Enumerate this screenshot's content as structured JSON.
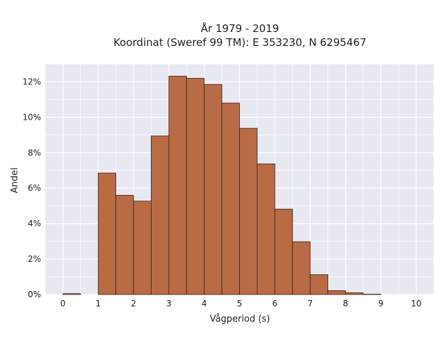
{
  "chart_data": {
    "type": "bar",
    "title_lines": [
      "År 1979 - 2019",
      "Koordinat (Sweref 99 TM): E 353230, N 6295467"
    ],
    "xlabel": "Vågperiod (s)",
    "ylabel": "Andel",
    "xlim": [
      -0.5,
      10.5
    ],
    "ylim": [
      0,
      13
    ],
    "x_ticks": [
      0,
      1,
      2,
      3,
      4,
      5,
      6,
      7,
      8,
      9,
      10
    ],
    "y_ticks": [
      {
        "value": 0,
        "label": "0%"
      },
      {
        "value": 2,
        "label": "2%"
      },
      {
        "value": 4,
        "label": "4%"
      },
      {
        "value": 6,
        "label": "6%"
      },
      {
        "value": 8,
        "label": "8%"
      },
      {
        "value": 10,
        "label": "10%"
      },
      {
        "value": 12,
        "label": "12%"
      }
    ],
    "bin_width": 0.5,
    "bins": [
      {
        "start": 0.0,
        "value": 0.05
      },
      {
        "start": 0.5,
        "value": 0.0
      },
      {
        "start": 1.0,
        "value": 6.85
      },
      {
        "start": 1.5,
        "value": 5.6
      },
      {
        "start": 2.0,
        "value": 5.27
      },
      {
        "start": 2.5,
        "value": 8.95
      },
      {
        "start": 3.0,
        "value": 12.32
      },
      {
        "start": 3.5,
        "value": 12.2
      },
      {
        "start": 4.0,
        "value": 11.85
      },
      {
        "start": 4.5,
        "value": 10.8
      },
      {
        "start": 5.0,
        "value": 9.38
      },
      {
        "start": 5.5,
        "value": 7.37
      },
      {
        "start": 6.0,
        "value": 4.82
      },
      {
        "start": 6.5,
        "value": 2.98
      },
      {
        "start": 7.0,
        "value": 1.12
      },
      {
        "start": 7.5,
        "value": 0.22
      },
      {
        "start": 8.0,
        "value": 0.1
      },
      {
        "start": 8.5,
        "value": 0.02
      }
    ],
    "grid": true,
    "colors": {
      "bar_fill": "#b86b44",
      "bar_stroke": "#3a2418",
      "plot_background": "#e8e8f1",
      "grid": "#ffffff"
    }
  }
}
